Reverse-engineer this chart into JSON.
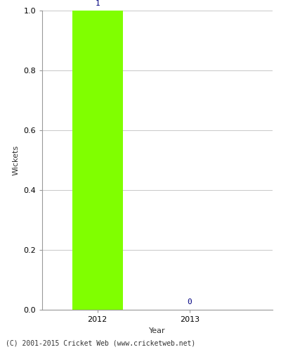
{
  "years": [
    2012,
    2013
  ],
  "values": [
    1,
    0
  ],
  "bar_color": "#80ff00",
  "label_color": "#000080",
  "ylabel": "Wickets",
  "xlabel": "Year",
  "ylim": [
    0,
    1.0
  ],
  "yticks": [
    0.0,
    0.2,
    0.4,
    0.6,
    0.8,
    1.0
  ],
  "grid_color": "#cccccc",
  "footer": "(C) 2001-2015 Cricket Web (www.cricketweb.net)",
  "background_color": "#ffffff",
  "bar_width": 0.55,
  "xlim": [
    2011.4,
    2013.9
  ]
}
